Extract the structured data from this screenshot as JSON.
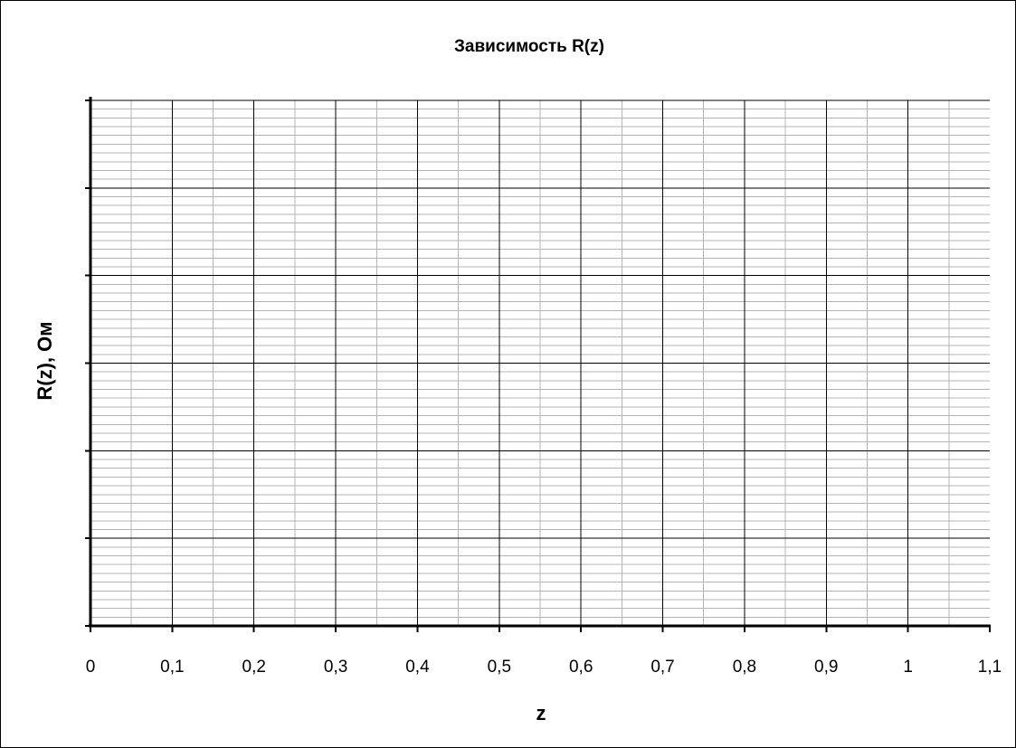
{
  "chart_data": {
    "type": "line",
    "title": "Зависимость R(z)",
    "xlabel": "z",
    "ylabel": "R(z), Ом",
    "xlim": [
      0,
      1.1
    ],
    "x_major_step": 0.1,
    "x_minor_step": 0.05,
    "x_tick_labels": [
      "0",
      "0,1",
      "0,2",
      "0,3",
      "0,4",
      "0,5",
      "0,6",
      "0,7",
      "0,8",
      "0,9",
      "1",
      "1,1"
    ],
    "y_major_divisions": 6,
    "y_minor_per_major": 10,
    "y_tick_labels": [],
    "series": [],
    "grid": true,
    "legend": "none",
    "colors": {
      "major_grid": "#000000",
      "minor_grid": "#b4b4b4",
      "axis": "#000000"
    }
  }
}
